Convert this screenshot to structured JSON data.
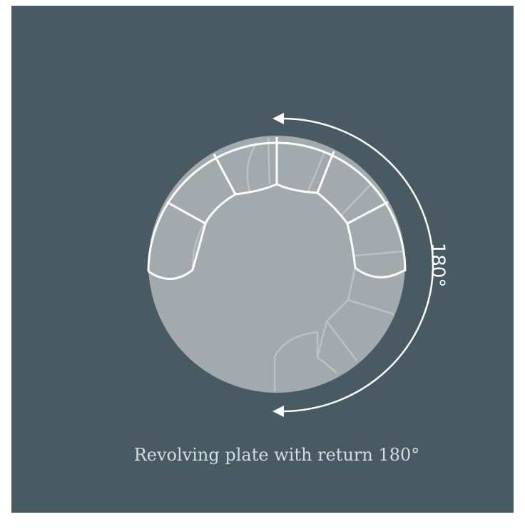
{
  "diagram": {
    "rotation_label": "180°",
    "caption": "Revolving plate with return 180°"
  }
}
